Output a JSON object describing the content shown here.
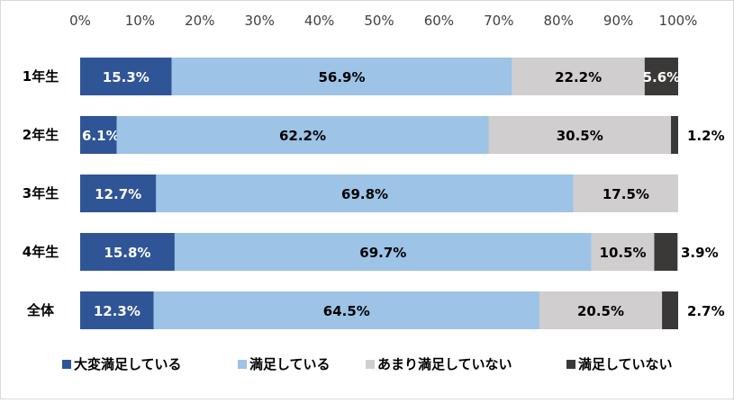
{
  "chart_data": {
    "type": "bar",
    "orientation": "horizontal",
    "stacked": true,
    "xlim": [
      0,
      100
    ],
    "x_tick_labels": [
      "0%",
      "10%",
      "20%",
      "30%",
      "40%",
      "50%",
      "60%",
      "70%",
      "80%",
      "90%",
      "100%"
    ],
    "categories": [
      "1年生",
      "2年生",
      "3年生",
      "4年生",
      "全体"
    ],
    "legend_position": "bottom",
    "series": [
      {
        "name": "大変満足している",
        "color": "#2f5597",
        "values": [
          15.3,
          6.1,
          12.7,
          15.8,
          12.3
        ],
        "labels": [
          "15.3%",
          "6.1%",
          "12.7%",
          "15.8%",
          "12.3%"
        ]
      },
      {
        "name": "満足している",
        "color": "#9dc3e6",
        "values": [
          56.9,
          62.2,
          69.8,
          69.7,
          64.5
        ],
        "labels": [
          "56.9%",
          "62.2%",
          "69.8%",
          "69.7%",
          "64.5%"
        ]
      },
      {
        "name": "あまり満足していない",
        "color": "#d0cece",
        "values": [
          22.2,
          30.5,
          17.5,
          10.5,
          20.5
        ],
        "labels": [
          "22.2%",
          "30.5%",
          "17.5%",
          "10.5%",
          "20.5%"
        ]
      },
      {
        "name": "満足していない",
        "color": "#3b3838",
        "values": [
          5.6,
          1.2,
          0,
          3.9,
          2.7
        ],
        "labels": [
          "5.6%",
          "1.2%",
          "",
          "3.9%",
          "2.7%"
        ]
      }
    ]
  }
}
